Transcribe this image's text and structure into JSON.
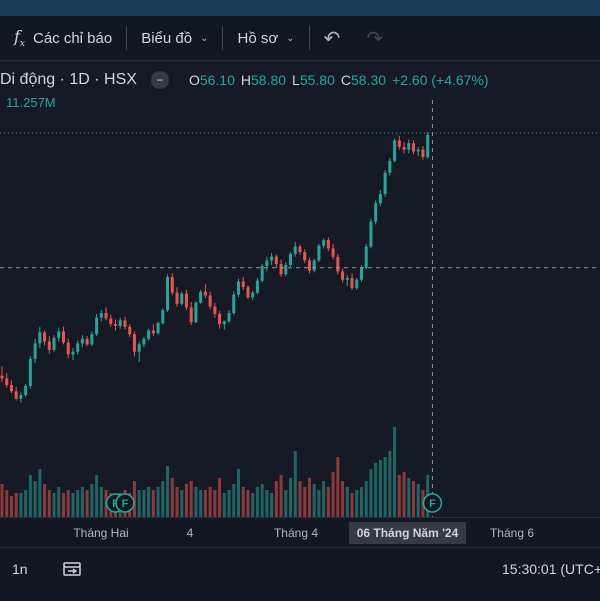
{
  "toolbar": {
    "indicators_label": "Các chỉ báo",
    "chart_label": "Biểu đồ",
    "profile_label": "Hồ sơ",
    "icons": [
      "function-icon",
      "chevron-down-icon",
      "undo-icon",
      "redo-icon"
    ]
  },
  "legend": {
    "symbol": "Di động · 1D · HSX",
    "open_label": "O",
    "open": "56.10",
    "high_label": "H",
    "high": "58.80",
    "low_label": "L",
    "low": "55.80",
    "close_label": "C",
    "close": "58.30",
    "change": "+2.60 (+4.67%)",
    "volume": "11.257M",
    "collapse_glyph": "−"
  },
  "time_axis": {
    "ticks": [
      "Tháng Hai",
      "4",
      "Tháng 4",
      "Tháng 6"
    ],
    "crosshair_label": "06 Tháng Năm '24"
  },
  "bottom": {
    "range": "1n",
    "clock": "15:30:01 (UTC+"
  },
  "markers": {
    "event_label": "F"
  },
  "colors": {
    "up": "#26a69a",
    "down": "#ef5350",
    "background": "#131722"
  },
  "chart_data": {
    "type": "candlestick",
    "ohlc": [
      [
        40.5,
        41.5,
        39.8,
        40.2
      ],
      [
        40.2,
        40.8,
        39.2,
        39.5
      ],
      [
        39.5,
        40.0,
        38.6,
        38.8
      ],
      [
        38.8,
        39.3,
        37.8,
        38.0
      ],
      [
        38.0,
        38.7,
        37.6,
        38.4
      ],
      [
        38.4,
        39.6,
        38.2,
        39.4
      ],
      [
        39.4,
        42.6,
        39.1,
        42.3
      ],
      [
        42.3,
        44.5,
        41.9,
        44.0
      ],
      [
        44.0,
        45.8,
        43.5,
        45.2
      ],
      [
        45.2,
        45.4,
        43.8,
        44.2
      ],
      [
        44.2,
        44.8,
        42.9,
        43.3
      ],
      [
        43.3,
        44.9,
        43.1,
        44.6
      ],
      [
        44.6,
        45.7,
        44.2,
        45.3
      ],
      [
        45.3,
        45.8,
        43.9,
        44.1
      ],
      [
        44.1,
        44.5,
        42.4,
        42.8
      ],
      [
        42.8,
        43.5,
        42.2,
        43.1
      ],
      [
        43.1,
        44.3,
        42.8,
        44.0
      ],
      [
        44.0,
        44.9,
        43.6,
        44.5
      ],
      [
        44.5,
        44.8,
        43.7,
        43.9
      ],
      [
        43.9,
        45.3,
        43.7,
        45.0
      ],
      [
        45.0,
        47.2,
        44.8,
        46.8
      ],
      [
        46.8,
        47.6,
        46.4,
        47.3
      ],
      [
        47.3,
        47.9,
        46.5,
        46.7
      ],
      [
        46.7,
        47.1,
        45.8,
        46.1
      ],
      [
        46.1,
        46.6,
        45.4,
        45.9
      ],
      [
        45.9,
        46.8,
        45.6,
        46.5
      ],
      [
        46.5,
        46.9,
        45.5,
        45.8
      ],
      [
        45.8,
        46.1,
        44.7,
        45.0
      ],
      [
        45.0,
        45.3,
        42.6,
        43.1
      ],
      [
        43.1,
        44.2,
        42.0,
        43.9
      ],
      [
        43.9,
        44.7,
        43.6,
        44.5
      ],
      [
        44.5,
        45.6,
        44.3,
        45.4
      ],
      [
        45.4,
        46.1,
        44.8,
        45.1
      ],
      [
        45.1,
        46.4,
        44.9,
        46.2
      ],
      [
        46.2,
        47.8,
        46.0,
        47.6
      ],
      [
        47.6,
        51.5,
        47.4,
        51.2
      ],
      [
        51.2,
        51.6,
        49.2,
        49.5
      ],
      [
        49.5,
        50.1,
        48.0,
        48.3
      ],
      [
        48.3,
        49.6,
        48.1,
        49.4
      ],
      [
        49.4,
        49.8,
        47.6,
        47.9
      ],
      [
        47.9,
        48.5,
        46.0,
        46.3
      ],
      [
        46.3,
        48.6,
        46.2,
        48.4
      ],
      [
        48.4,
        49.8,
        48.3,
        49.6
      ],
      [
        49.6,
        50.4,
        48.9,
        49.2
      ],
      [
        49.2,
        49.6,
        47.7,
        48.0
      ],
      [
        48.0,
        48.4,
        46.8,
        47.2
      ],
      [
        47.2,
        47.5,
        45.6,
        46.1
      ],
      [
        46.1,
        46.5,
        45.5,
        46.4
      ],
      [
        46.4,
        47.6,
        46.2,
        47.3
      ],
      [
        47.3,
        49.6,
        47.1,
        49.3
      ],
      [
        49.3,
        51.0,
        49.0,
        50.7
      ],
      [
        50.7,
        51.2,
        49.8,
        50.1
      ],
      [
        50.1,
        50.3,
        48.8,
        49.0
      ],
      [
        49.0,
        49.7,
        48.7,
        49.5
      ],
      [
        49.5,
        51.1,
        49.3,
        50.8
      ],
      [
        50.8,
        52.6,
        50.6,
        52.4
      ],
      [
        52.4,
        53.4,
        51.8,
        53.0
      ],
      [
        53.0,
        53.8,
        52.5,
        53.4
      ],
      [
        53.4,
        53.6,
        52.2,
        52.6
      ],
      [
        52.6,
        53.1,
        51.2,
        51.5
      ],
      [
        51.5,
        52.8,
        51.3,
        52.5
      ],
      [
        52.5,
        53.9,
        52.3,
        53.7
      ],
      [
        53.7,
        55.0,
        53.4,
        54.5
      ],
      [
        54.5,
        54.7,
        53.6,
        53.9
      ],
      [
        53.9,
        54.2,
        52.7,
        53.0
      ],
      [
        53.0,
        53.3,
        51.6,
        51.9
      ],
      [
        51.9,
        53.2,
        51.7,
        53.0
      ],
      [
        53.0,
        54.8,
        52.8,
        54.6
      ],
      [
        54.6,
        55.4,
        54.3,
        55.2
      ],
      [
        55.2,
        55.5,
        54.0,
        54.3
      ],
      [
        54.3,
        54.8,
        53.1,
        53.4
      ],
      [
        53.4,
        53.7,
        51.5,
        51.8
      ],
      [
        51.8,
        52.1,
        50.6,
        50.9
      ],
      [
        50.9,
        51.4,
        50.2,
        51.1
      ],
      [
        51.1,
        51.6,
        49.8,
        50.0
      ],
      [
        50.0,
        51.1,
        49.8,
        50.9
      ],
      [
        50.9,
        52.5,
        50.7,
        52.2
      ],
      [
        52.2,
        54.8,
        52.0,
        54.5
      ],
      [
        54.5,
        57.5,
        54.3,
        57.2
      ],
      [
        57.2,
        59.5,
        56.9,
        59.2
      ],
      [
        59.2,
        60.6,
        58.9,
        60.2
      ],
      [
        60.2,
        62.8,
        59.9,
        62.5
      ],
      [
        62.5,
        64.1,
        62.2,
        63.8
      ],
      [
        63.8,
        66.2,
        63.6,
        66.0
      ],
      [
        66.0,
        66.5,
        65.0,
        65.3
      ],
      [
        65.3,
        65.8,
        64.6,
        65.0
      ],
      [
        65.0,
        66.1,
        64.6,
        65.7
      ],
      [
        65.7,
        66.0,
        64.5,
        64.8
      ],
      [
        64.8,
        65.3,
        64.3,
        65.0
      ],
      [
        65.0,
        65.4,
        63.9,
        64.2
      ],
      [
        64.2,
        66.9,
        64.0,
        66.6
      ]
    ],
    "volume": [
      11,
      9,
      7,
      8,
      8,
      9,
      14,
      12,
      16,
      11,
      9,
      8,
      10,
      8,
      9,
      8,
      9,
      10,
      9,
      11,
      14,
      10,
      9,
      8,
      7,
      8,
      9,
      8,
      12,
      9,
      9,
      10,
      9,
      10,
      12,
      17,
      13,
      10,
      9,
      11,
      12,
      10,
      9,
      9,
      10,
      9,
      13,
      8,
      9,
      11,
      16,
      10,
      9,
      8,
      10,
      11,
      9,
      8,
      12,
      14,
      9,
      13,
      22,
      12,
      10,
      13,
      11,
      9,
      12,
      10,
      15,
      20,
      12,
      10,
      8,
      9,
      10,
      12,
      16,
      18,
      19,
      20,
      22,
      30,
      14,
      15,
      13,
      12,
      11,
      9,
      14
    ],
    "volume_colors": "match_candles",
    "event_markers": [
      24,
      26,
      91
    ],
    "crosshair_index": 91,
    "crosshair_price": 52.2,
    "y_range": [
      37,
      68
    ],
    "x_labels": [
      "Tháng Hai",
      "4",
      "Tháng 4",
      "06 Tháng Năm '24",
      "Tháng 6"
    ]
  }
}
